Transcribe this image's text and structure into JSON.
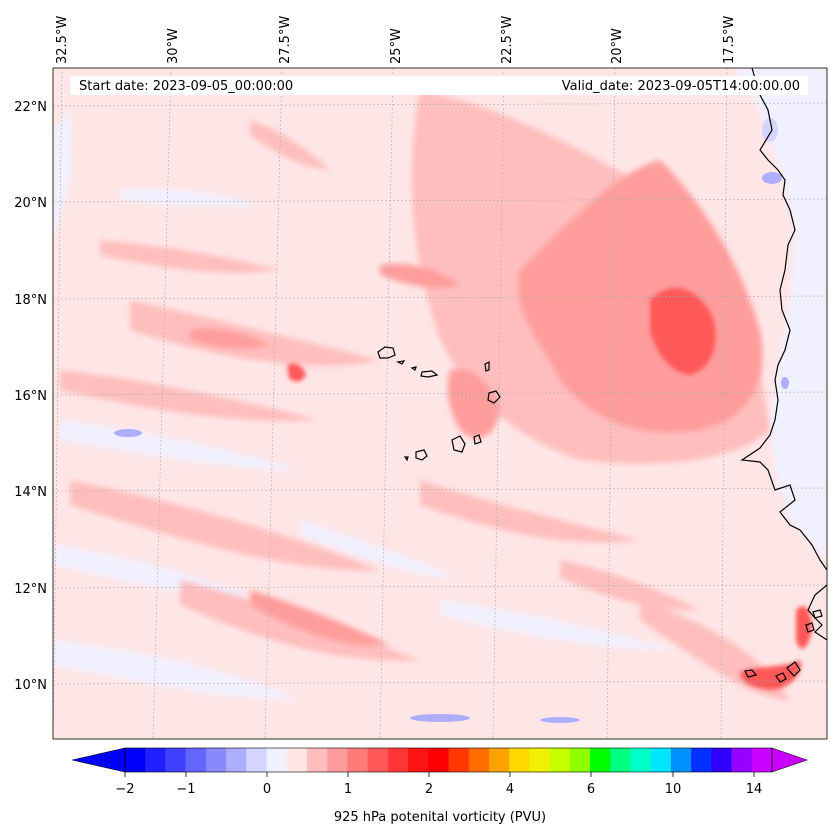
{
  "header": {
    "start_date": "Start date: 2023-09-05_00:00:00",
    "valid_date": "Valid_date: 2023-09-05T14:00:00.00"
  },
  "axes": {
    "lon_labels": [
      "32.5°W",
      "30°W",
      "27.5°W",
      "25°W",
      "22.5°W",
      "20°W",
      "17.5°W"
    ],
    "lat_labels": [
      "22°N",
      "20°N",
      "18°N",
      "16°N",
      "14°N",
      "12°N",
      "10°N"
    ]
  },
  "colorbar": {
    "label": "925 hPa potenital vorticity (PVU)",
    "tick_labels": [
      "−2",
      "−1",
      "0",
      "1",
      "2",
      "4",
      "6",
      "10",
      "14"
    ],
    "colors": [
      "#0000ff",
      "#2020ff",
      "#4040ff",
      "#6464ff",
      "#8888ff",
      "#aeaeff",
      "#d4d4ff",
      "#f0f0ff",
      "#ffe6e6",
      "#ffbebe",
      "#ff9c9c",
      "#ff7a7a",
      "#ff5858",
      "#ff3636",
      "#ff1414",
      "#ff0000",
      "#ff3600",
      "#ff6c00",
      "#ffa200",
      "#ffd800",
      "#f0f000",
      "#c8ff00",
      "#90ff00",
      "#00ff00",
      "#00ff80",
      "#00ffc8",
      "#00e6ff",
      "#0090ff",
      "#0030ff",
      "#3000ff",
      "#9600ff",
      "#c800ff"
    ],
    "under_color": "#0000ff",
    "over_color": "#c800ff"
  },
  "style": {
    "background_fill": "#ffe6e6",
    "neutral_fill": "#f0f0ff",
    "pink_light": "#ffbebe",
    "pink_mid": "#ff9c9c",
    "red_strong": "#ff5858",
    "blue_light": "#d4d4ff",
    "blue_mid": "#aeaeff",
    "coast_color": "#000000"
  }
}
